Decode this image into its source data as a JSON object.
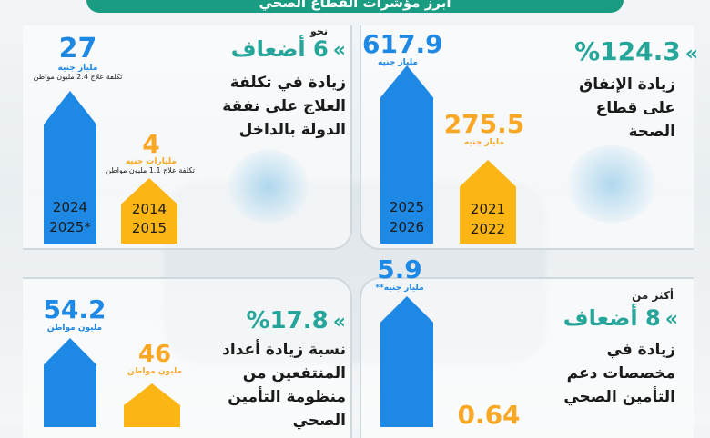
{
  "title": "أبرز مؤشرات القطاع الصحي",
  "top_left": {
    "prefix": "نحو",
    "highlight": "6 أضعاف",
    "desc": [
      "زيادة في تكلفة",
      "العلاج على نفقة",
      "الدولة بالداخل"
    ],
    "bar_blue": {
      "value": "27",
      "unit": "مليار جنيه",
      "note": "تكلفة علاج 2.4 مليون مواطن",
      "years": [
        "2024",
        "2025*"
      ]
    },
    "bar_orange": {
      "value": "4",
      "unit": "مليارات جنيه",
      "note": "تكلفة علاج 1.1 مليون مواطن",
      "years": [
        "2014",
        "2015"
      ]
    }
  },
  "top_right": {
    "highlight": "%124.3",
    "desc": [
      "زيادة الإنفاق",
      "على قطاع",
      "الصحة"
    ],
    "bar_blue": {
      "value": "617.9",
      "unit": "مليار جنيه",
      "years": [
        "2025",
        "2026"
      ]
    },
    "bar_orange": {
      "value": "275.5",
      "unit": "مليار جنيه",
      "years": [
        "2021",
        "2022"
      ]
    }
  },
  "bottom_left": {
    "highlight": "%17.8",
    "desc": [
      "نسبة زيادة أعداد",
      "المنتفعين من",
      "منظومة التأمين",
      "الصحي"
    ],
    "bar_blue": {
      "value": "54.2",
      "unit": "مليون مواطن"
    },
    "bar_orange": {
      "value": "46",
      "unit": "مليون مواطن"
    }
  },
  "bottom_right": {
    "prefix": "أكثر من",
    "highlight": "8 أضعاف",
    "desc": [
      "زيادة في",
      "مخصصات دعم",
      "التأمين الصحي"
    ],
    "bar_blue": {
      "value": "5.9",
      "unit": "مليار جنيه**"
    },
    "bar_orange": {
      "value": "0.64"
    }
  },
  "colors": {
    "blue": "#1e88e5",
    "orange": "#fbb515",
    "green": "#26a69a",
    "title_bg": "#1a9c83"
  }
}
